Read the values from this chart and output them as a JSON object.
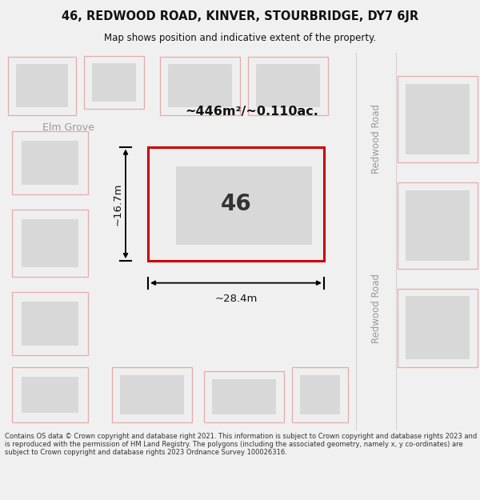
{
  "title_line1": "46, REDWOOD ROAD, KINVER, STOURBRIDGE, DY7 6JR",
  "title_line2": "Map shows position and indicative extent of the property.",
  "footer_text": "Contains OS data © Crown copyright and database right 2021. This information is subject to Crown copyright and database rights 2023 and is reproduced with the permission of HM Land Registry. The polygons (including the associated geometry, namely x, y co-ordinates) are subject to Crown copyright and database rights 2023 Ordnance Survey 100026316.",
  "plot_label": "46",
  "area_label": "~446m²/~0.110ac.",
  "width_label": "~28.4m",
  "height_label": "~16.7m",
  "street_label_top": "Redwood Road",
  "street_label_bottom": "Redwood Road",
  "street_label_left": "Elm Grove",
  "plot_color": "#cc0000",
  "bg_color": "#ffffff",
  "outer_bg": "#f0f0f0",
  "plot_fill": "#efefef",
  "building_fill": "#d8d8d8",
  "other_plot_edge": "#e8aaaa",
  "road_color": "#e8e8e8",
  "text_color_dark": "#111111",
  "text_color_road": "#999999"
}
